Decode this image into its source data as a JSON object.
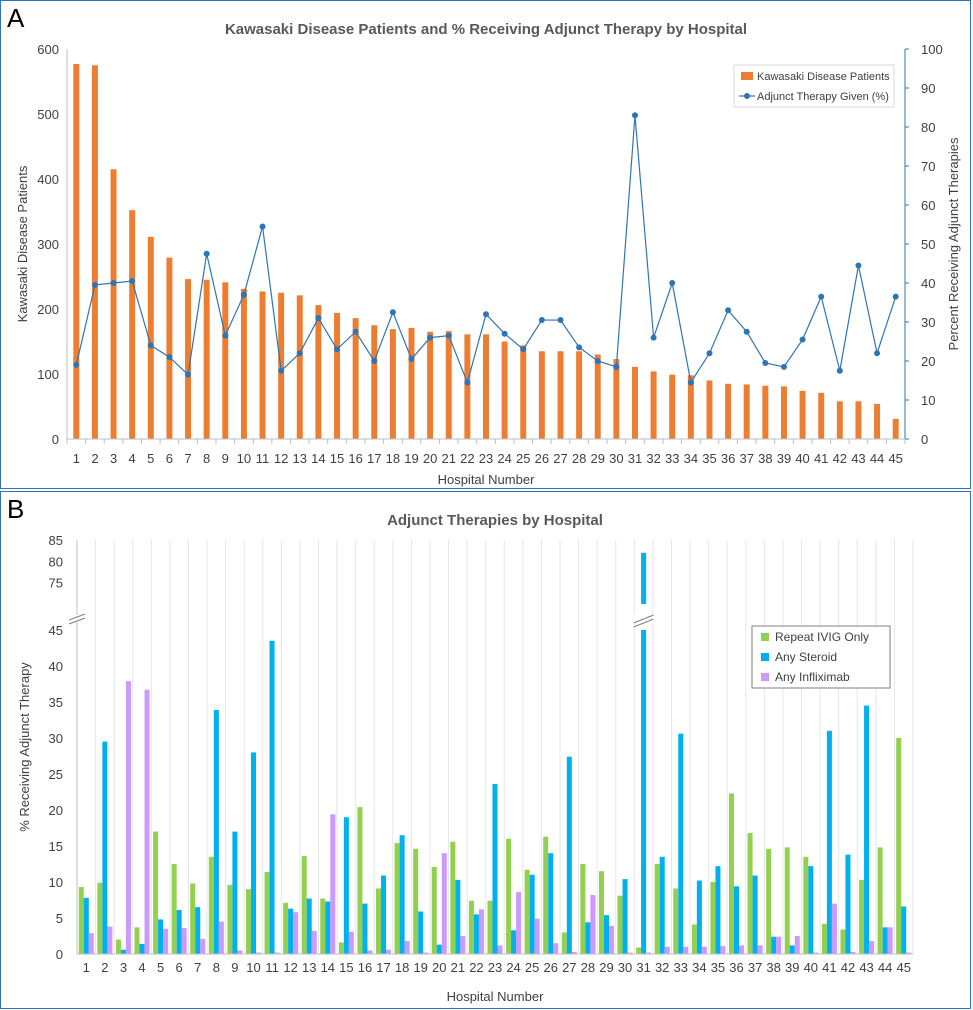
{
  "panel_a": {
    "label": "A",
    "chart_data": {
      "type": "bar+line",
      "title": "Kawasaki Disease Patients and % Receiving Adjunct Therapy by Hospital",
      "xlabel": "Hospital Number",
      "ylabel_left": "Kawasaki Disease Patients",
      "ylabel_right": "Percent Receiving Adjunct Therapies",
      "ylim_left": [
        0,
        600
      ],
      "yticks_left": [
        0,
        100,
        200,
        300,
        400,
        500,
        600
      ],
      "ylim_right": [
        0,
        100
      ],
      "yticks_right": [
        0,
        10,
        20,
        30,
        40,
        50,
        60,
        70,
        80,
        90,
        100
      ],
      "legend_position": "top-right",
      "categories": [
        "1",
        "2",
        "3",
        "4",
        "5",
        "6",
        "7",
        "8",
        "9",
        "10",
        "11",
        "12",
        "13",
        "14",
        "15",
        "16",
        "17",
        "18",
        "19",
        "20",
        "21",
        "22",
        "23",
        "24",
        "25",
        "26",
        "27",
        "28",
        "29",
        "30",
        "31",
        "32",
        "33",
        "34",
        "35",
        "36",
        "37",
        "38",
        "39",
        "40",
        "41",
        "42",
        "43",
        "44",
        "45"
      ],
      "series": [
        {
          "name": "Kawasaki Disease Patients",
          "type": "bar",
          "axis": "left",
          "color": "#ed7d31",
          "values": [
            577,
            575,
            415,
            352,
            311,
            279,
            246,
            245,
            241,
            231,
            227,
            225,
            221,
            206,
            194,
            186,
            175,
            169,
            171,
            165,
            166,
            161,
            161,
            150,
            144,
            135,
            135,
            135,
            130,
            123,
            111,
            104,
            99,
            98,
            90,
            85,
            84,
            82,
            81,
            74,
            71,
            58,
            58,
            54,
            31
          ]
        },
        {
          "name": "Adjunct Therapy Given (%)",
          "type": "line",
          "axis": "right",
          "color": "#2e75b6",
          "values": [
            19,
            39.5,
            40,
            40.5,
            24,
            21,
            16.5,
            47.5,
            26.5,
            37,
            54.5,
            17.5,
            22,
            31,
            23,
            27.5,
            20,
            32.5,
            20.5,
            26,
            26.5,
            14.5,
            32,
            27,
            23,
            30.5,
            30.5,
            23.5,
            20,
            18.5,
            83,
            26,
            40,
            14.5,
            22,
            33,
            27.5,
            19.5,
            18.5,
            25.5,
            36.5,
            17.5,
            44.5,
            22,
            36.5
          ]
        }
      ]
    }
  },
  "panel_b": {
    "label": "B",
    "chart_data": {
      "type": "bar",
      "title": "Adjunct Therapies by Hospital",
      "xlabel": "Hospital Number",
      "ylabel": "% Receiving Adjunct Therapy",
      "ylim": [
        0,
        85
      ],
      "axis_break": [
        45,
        70
      ],
      "yticks_lower": [
        0,
        5,
        10,
        15,
        20,
        25,
        30,
        35,
        40,
        45
      ],
      "yticks_upper": [
        75,
        80,
        85
      ],
      "legend_position": "top-right",
      "categories": [
        "1",
        "2",
        "3",
        "4",
        "5",
        "6",
        "7",
        "8",
        "9",
        "10",
        "11",
        "12",
        "13",
        "14",
        "15",
        "16",
        "17",
        "18",
        "19",
        "20",
        "21",
        "22",
        "23",
        "24",
        "25",
        "26",
        "27",
        "28",
        "29",
        "30",
        "31",
        "32",
        "33",
        "34",
        "35",
        "36",
        "37",
        "38",
        "39",
        "40",
        "41",
        "42",
        "43",
        "44",
        "45"
      ],
      "series": [
        {
          "name": "Repeat IVIG Only",
          "color": "#92d050",
          "values": [
            9.3,
            9.9,
            2,
            3.7,
            17,
            12.5,
            9.8,
            13.5,
            9.6,
            9,
            11.4,
            7.1,
            13.6,
            7.7,
            1.6,
            20.4,
            9.1,
            15.4,
            14.6,
            12.1,
            15.6,
            7.4,
            7.4,
            16,
            11.7,
            16.3,
            3,
            12.5,
            11.5,
            8.1,
            0.9,
            12.5,
            9.1,
            4.1,
            10,
            22.3,
            16.8,
            14.6,
            14.8,
            13.5,
            4.2,
            3.4,
            10.3,
            14.8,
            30
          ]
        },
        {
          "name": "Any Steroid",
          "color": "#00b0f0",
          "values": [
            7.8,
            29.5,
            0.6,
            1.4,
            4.8,
            6.1,
            6.5,
            33.9,
            17,
            28,
            43.5,
            6.3,
            7.7,
            7.3,
            19,
            7,
            10.9,
            16.5,
            5.9,
            1.3,
            10.3,
            5.5,
            23.6,
            3.3,
            11,
            14,
            27.4,
            4.4,
            5.4,
            10.4,
            82,
            13.5,
            30.6,
            10.2,
            12.2,
            9.4,
            10.9,
            2.4,
            1.2,
            12.2,
            31,
            13.8,
            34.5,
            3.7,
            6.6
          ]
        },
        {
          "name": "Any Infliximab",
          "color": "#cc99ff",
          "values": [
            2.9,
            3.8,
            37.9,
            36.7,
            3.5,
            3.6,
            2.1,
            4.5,
            0.5,
            0.2,
            0.2,
            5.8,
            3.2,
            19.4,
            3.1,
            0.5,
            0.6,
            1.8,
            0.2,
            14,
            2.5,
            6.2,
            1.2,
            8.6,
            4.9,
            1.5,
            0.3,
            8.2,
            3.9,
            0.2,
            0.2,
            1,
            1,
            1,
            1.1,
            1.2,
            1.2,
            2.4,
            2.5,
            0.2,
            7,
            0.3,
            1.8,
            3.7,
            0.2
          ]
        }
      ]
    }
  }
}
